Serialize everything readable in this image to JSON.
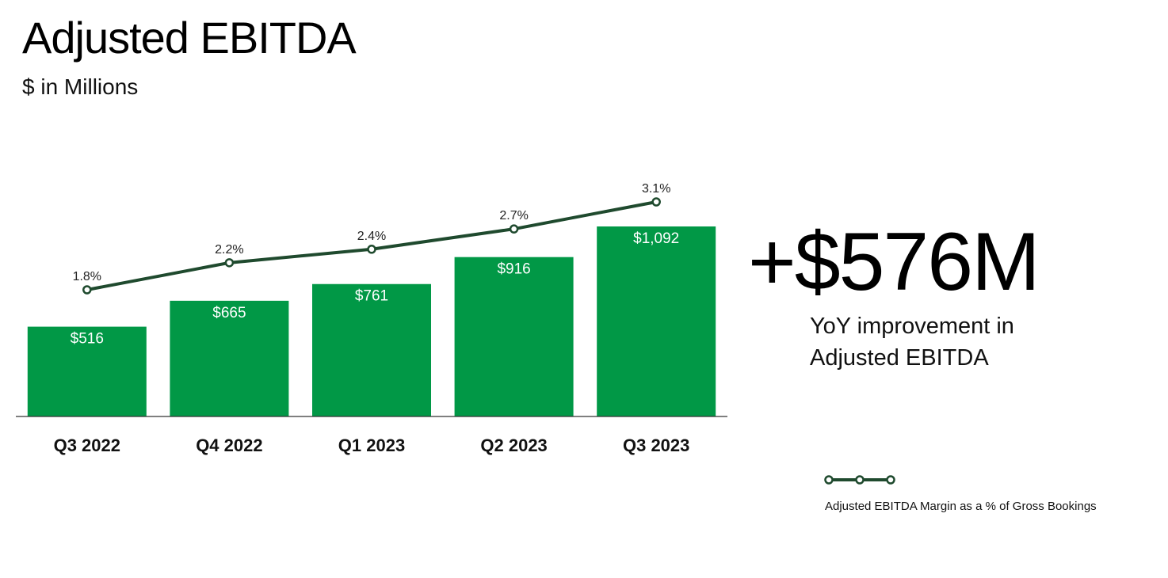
{
  "header": {
    "title": "Adjusted EBITDA",
    "subtitle": "$ in Millions"
  },
  "callout": {
    "value": "+$576M",
    "line1": "YoY improvement in",
    "line2": "Adjusted EBITDA"
  },
  "legend": {
    "line_label": "Adjusted EBITDA Margin as a % of Gross Bookings"
  },
  "colors": {
    "bar": "#019846",
    "line": "#1f4a2e",
    "marker_fill": "#ffffff"
  },
  "chart_data": {
    "type": "bar",
    "categories": [
      "Q3 2022",
      "Q4 2022",
      "Q1 2023",
      "Q2 2023",
      "Q3 2023"
    ],
    "values": [
      516,
      665,
      761,
      916,
      1092
    ],
    "value_labels": [
      "$516",
      "$665",
      "$761",
      "$916",
      "$1,092"
    ],
    "ylim": [
      0,
      1092
    ],
    "grid": false,
    "overlay_line": {
      "type": "line",
      "name": "Adjusted EBITDA Margin as a % of Gross Bookings",
      "values": [
        1.8,
        2.2,
        2.4,
        2.7,
        3.1
      ],
      "value_labels": [
        "1.8%",
        "2.2%",
        "2.4%",
        "2.7%",
        "3.1%"
      ]
    },
    "legend": "bottom-right"
  }
}
